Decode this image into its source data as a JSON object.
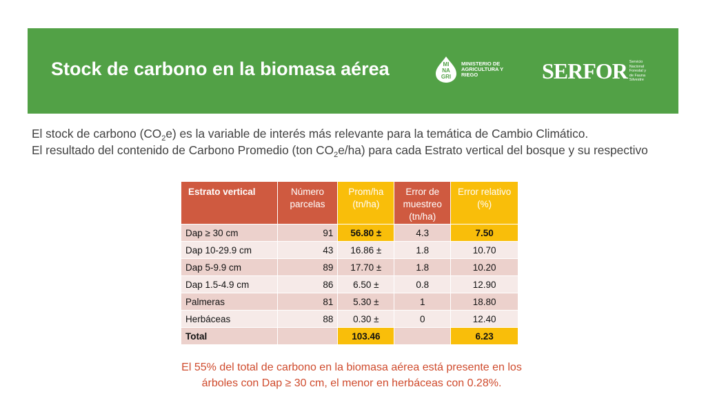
{
  "header": {
    "title": "Stock de carbono en la biomasa aérea",
    "minagri_letters": "MI\nNA\nGRI",
    "minagri_text": "MINISTERIO DE AGRICULTURA Y RIEGO",
    "serfor_word": "SERFOR",
    "serfor_sub": "Servicio Nacional Forestal y de Fauna Silvestre",
    "banner_color": "#52a146"
  },
  "intro": {
    "line1_a": "El stock de carbono (CO",
    "line1_sub": "2",
    "line1_b": "e) es la variable de interés más relevante para la temática de Cambio Climático.",
    "line2_a": "El resultado del contenido de Carbono Promedio (ton CO",
    "line2_sub": "2",
    "line2_b": "e/ha) para cada Estrato vertical del bosque y su respectivo"
  },
  "table": {
    "headers": [
      "Estrato vertical",
      "Número parcelas",
      "Prom/ha (tn/ha)",
      "Error de muestreo (tn/ha)",
      "Error relativo (%)"
    ],
    "rows": [
      [
        "Dap ≥ 30 cm",
        "91",
        "56.80 ±",
        "4.3",
        "7.50"
      ],
      [
        "Dap 10-29.9 cm",
        "43",
        "16.86 ±",
        "1.8",
        "10.70"
      ],
      [
        "Dap 5-9.9 cm",
        "89",
        "17.70 ±",
        "1.8",
        "10.20"
      ],
      [
        "Dap 1.5-4.9 cm",
        "86",
        "6.50 ±",
        "0.8",
        "12.90"
      ],
      [
        "Palmeras",
        "81",
        "5.30 ±",
        "1",
        "18.80"
      ],
      [
        "Herbáceas",
        "88",
        "0.30 ±",
        "0",
        "12.40"
      ]
    ],
    "total": [
      "Total",
      "",
      "103.46",
      "",
      "6.23"
    ],
    "header_red": "#cf5a40",
    "header_yellow": "#f9be0a"
  },
  "conclusion": {
    "line1": "El 55% del total de carbono en la biomasa aérea está presente en los",
    "line2": "árboles con Dap ≥ 30 cm, el menor en herbáceas con 0.28%."
  }
}
